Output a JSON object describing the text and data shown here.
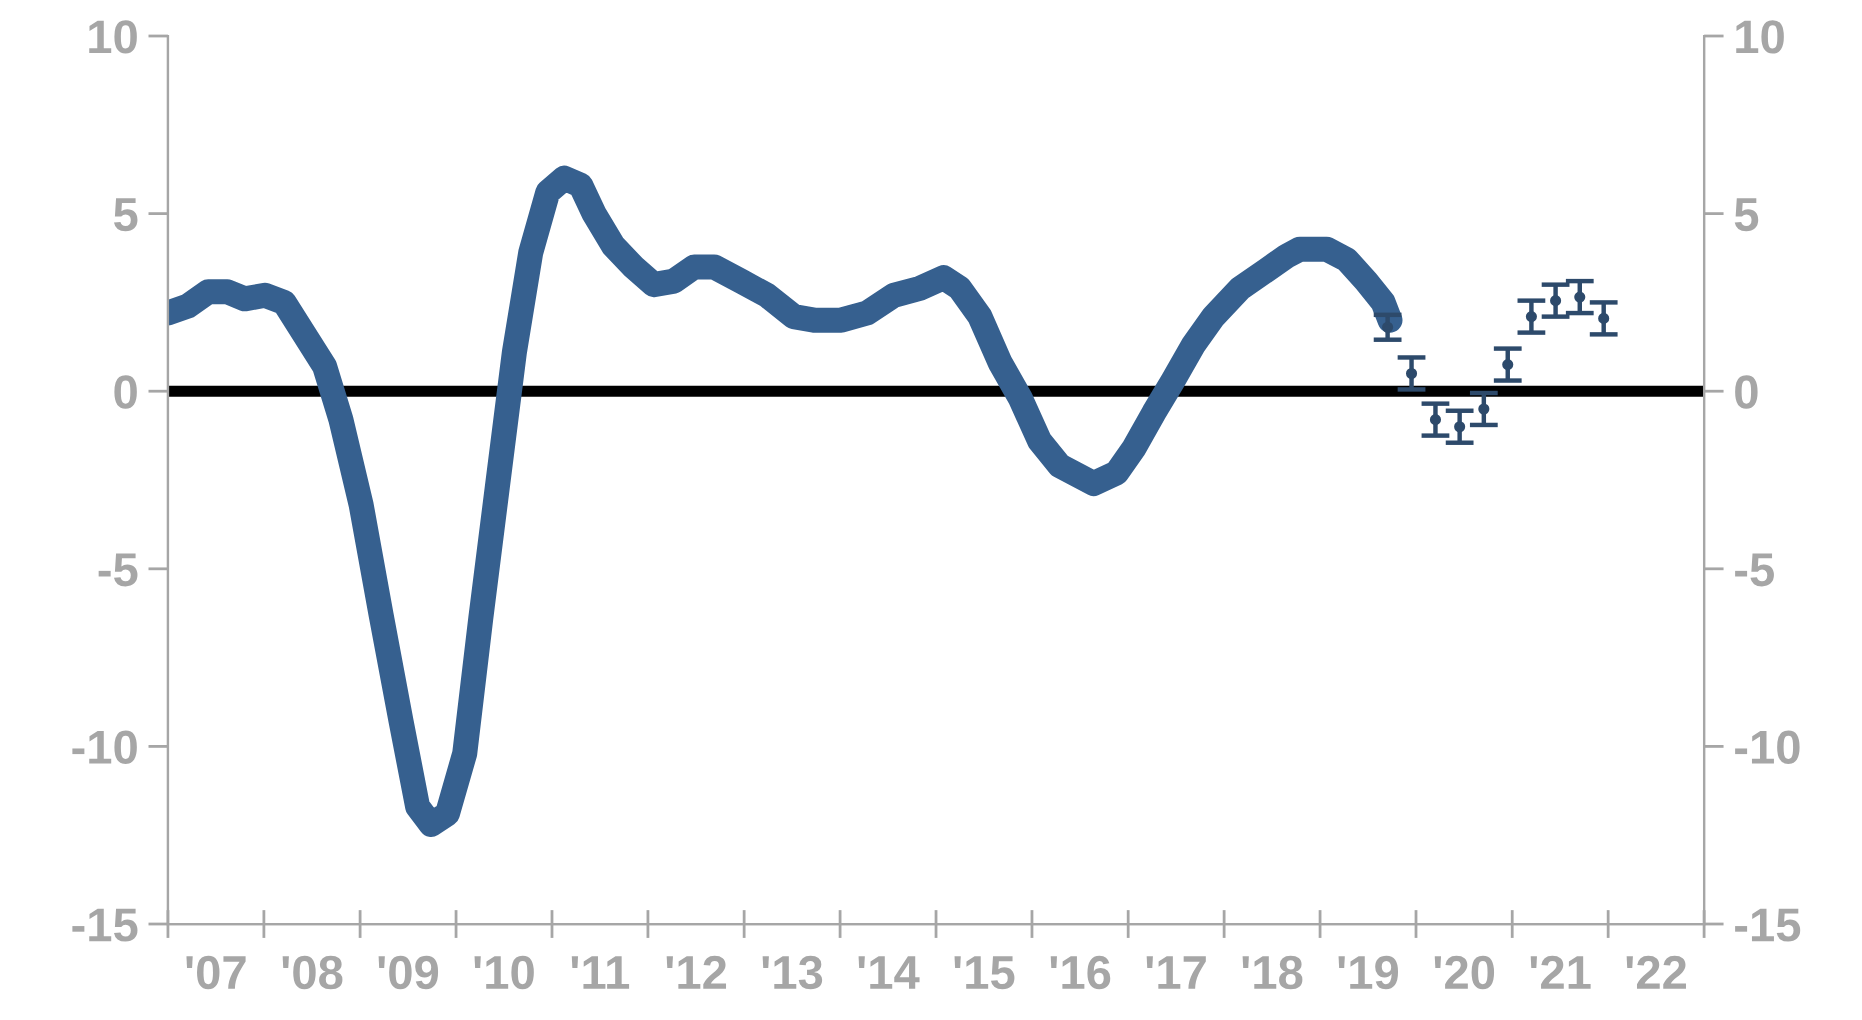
{
  "chart_data": {
    "type": "line",
    "xlim": [
      "2007-01-01",
      "2023-01-01"
    ],
    "xticks": [
      {
        "value": "2007-01-01",
        "label": null
      },
      {
        "value": "2007-07-02",
        "label": "'07"
      },
      {
        "value": "2008-01-01",
        "label": null
      },
      {
        "value": "2008-07-02",
        "label": "'08"
      },
      {
        "value": "2009-01-01",
        "label": null
      },
      {
        "value": "2009-07-02",
        "label": "'09"
      },
      {
        "value": "2010-01-01",
        "label": null
      },
      {
        "value": "2010-07-02",
        "label": "'10"
      },
      {
        "value": "2011-01-01",
        "label": null
      },
      {
        "value": "2011-07-02",
        "label": "'11"
      },
      {
        "value": "2012-01-01",
        "label": null
      },
      {
        "value": "2012-07-02",
        "label": "'12"
      },
      {
        "value": "2013-01-01",
        "label": null
      },
      {
        "value": "2013-07-02",
        "label": "'13"
      },
      {
        "value": "2014-01-01",
        "label": null
      },
      {
        "value": "2014-07-02",
        "label": "'14"
      },
      {
        "value": "2015-01-01",
        "label": null
      },
      {
        "value": "2015-07-02",
        "label": "'15"
      },
      {
        "value": "2016-01-01",
        "label": null
      },
      {
        "value": "2016-07-02",
        "label": "'16"
      },
      {
        "value": "2017-01-01",
        "label": null
      },
      {
        "value": "2017-07-02",
        "label": "'17"
      },
      {
        "value": "2018-01-01",
        "label": null
      },
      {
        "value": "2018-07-02",
        "label": "'18"
      },
      {
        "value": "2019-01-01",
        "label": null
      },
      {
        "value": "2019-07-02",
        "label": "'19"
      },
      {
        "value": "2020-01-01",
        "label": null
      },
      {
        "value": "2020-07-02",
        "label": "'20"
      },
      {
        "value": "2021-01-01",
        "label": null
      },
      {
        "value": "2021-07-02",
        "label": "'21"
      },
      {
        "value": "2022-01-01",
        "label": null
      },
      {
        "value": "2022-07-02",
        "label": "'22"
      },
      {
        "value": "2023-01-01",
        "label": null
      }
    ],
    "ylim": [
      -15,
      10
    ],
    "yticks": [
      -15,
      -10,
      -5,
      0,
      5,
      10
    ],
    "y2lim": [
      -15,
      10
    ],
    "y2ticks": [
      -15,
      -10,
      -5,
      0,
      5,
      10
    ],
    "grid": false,
    "ref_lines": [
      {
        "axis": "y",
        "value": 0,
        "color": "#000000"
      }
    ],
    "series": [
      {
        "color": "#36608f",
        "marker": "none",
        "line_style": "solid",
        "x": [
          "2007-01-01",
          "2007-03-18",
          "2007-06-03",
          "2007-08-15",
          "2007-10-20",
          "2008-01-05",
          "2008-03-18",
          "2008-06-03",
          "2008-08-19",
          "2008-10-20",
          "2009-01-05",
          "2009-03-22",
          "2009-06-06",
          "2009-08-08",
          "2009-09-28",
          "2009-11-29",
          "2010-02-03",
          "2010-04-05",
          "2010-06-07",
          "2010-08-11",
          "2010-10-12",
          "2010-12-16",
          "2011-02-17",
          "2011-04-20",
          "2011-06-10",
          "2011-08-22",
          "2011-11-07",
          "2012-01-23",
          "2012-04-09",
          "2012-06-25",
          "2012-09-09",
          "2012-12-20",
          "2013-03-29",
          "2013-07-09",
          "2013-09-24",
          "2014-01-05",
          "2014-04-13",
          "2014-07-24",
          "2014-11-02",
          "2015-01-30",
          "2015-04-01",
          "2015-06-17",
          "2015-09-02",
          "2015-11-18",
          "2016-01-30",
          "2016-04-16",
          "2016-08-22",
          "2016-11-18",
          "2017-01-23",
          "2017-04-09",
          "2017-06-21",
          "2017-09-06",
          "2017-11-22",
          "2018-03-04",
          "2018-06-10",
          "2018-08-26",
          "2018-10-16",
          "2019-01-26",
          "2019-04-13",
          "2019-06-25",
          "2019-08-29",
          "2019-09-24"
        ],
        "values": [
          2.2,
          2.4,
          2.8,
          2.8,
          2.6,
          2.7,
          2.5,
          1.6,
          0.7,
          -0.8,
          -3.2,
          -6.3,
          -9.3,
          -11.7,
          -12.2,
          -11.9,
          -10.2,
          -6.4,
          -2.7,
          1.1,
          3.9,
          5.6,
          6.0,
          5.8,
          5.0,
          4.1,
          3.5,
          3.0,
          3.1,
          3.5,
          3.5,
          3.1,
          2.7,
          2.1,
          2.0,
          2.0,
          2.2,
          2.7,
          2.9,
          3.2,
          2.9,
          2.1,
          0.8,
          -0.2,
          -1.4,
          -2.1,
          -2.6,
          -2.3,
          -1.6,
          -0.6,
          0.3,
          1.3,
          2.1,
          2.9,
          3.4,
          3.8,
          4.0,
          4.0,
          3.7,
          3.1,
          2.5,
          2.0
        ]
      },
      {
        "type": "scatter",
        "color": "#2d4a6b",
        "marker": "circle",
        "x": [
          "2019-09-15",
          "2019-12-15",
          "2020-03-15",
          "2020-06-15",
          "2020-09-15",
          "2020-12-15",
          "2021-03-15",
          "2021-06-15",
          "2021-09-15",
          "2021-12-15"
        ],
        "values": [
          1.8,
          0.5,
          -0.8,
          -1.0,
          -0.5,
          0.75,
          2.1,
          2.55,
          2.65,
          2.05
        ],
        "errors": [
          0.35,
          0.45,
          0.45,
          0.45,
          0.45,
          0.45,
          0.45,
          0.45,
          0.45,
          0.45
        ]
      }
    ]
  }
}
